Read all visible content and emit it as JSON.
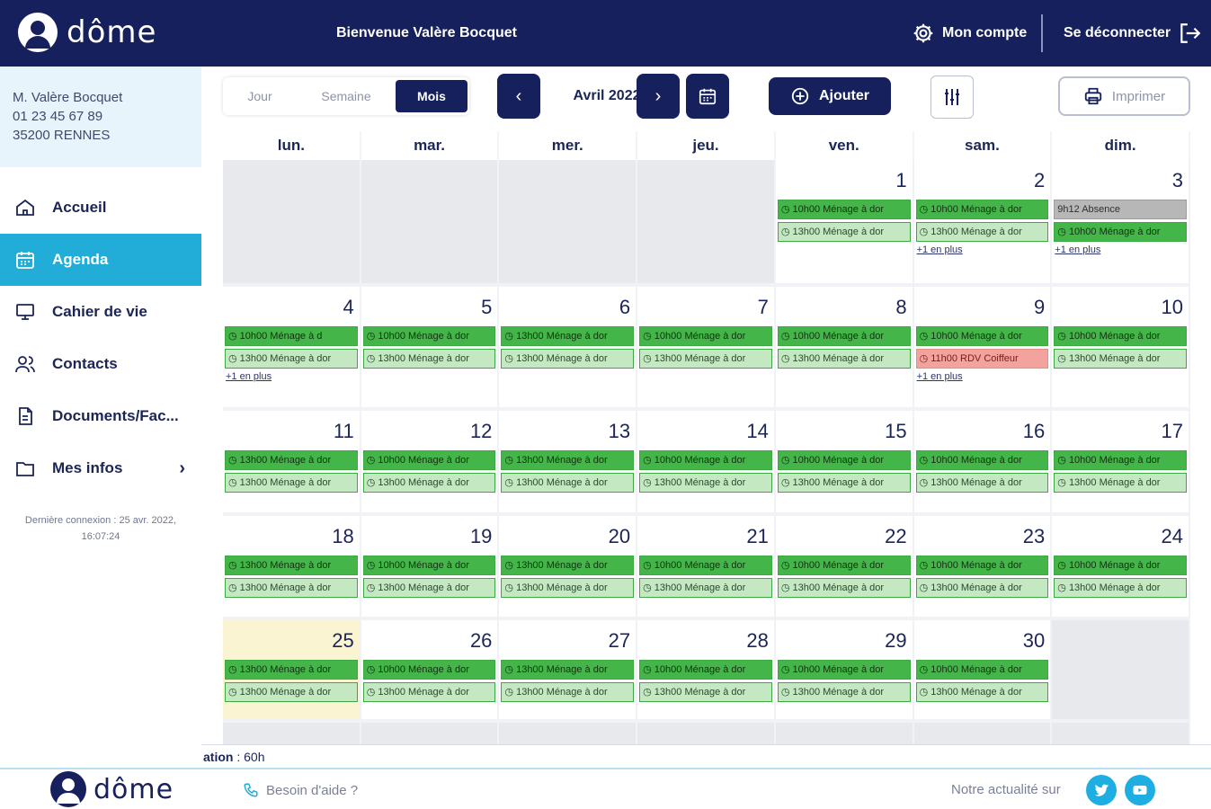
{
  "header": {
    "logo_text": "dôme",
    "welcome": "Bienvenue Valère Bocquet",
    "account_label": "Mon compte",
    "logout_label": "Se déconnecter"
  },
  "user": {
    "name": "M. Valère Bocquet",
    "phone": "01 23 45 67 89",
    "city": "35200 RENNES"
  },
  "sidebar": {
    "items": [
      {
        "label": "Accueil",
        "icon": "home-icon"
      },
      {
        "label": "Agenda",
        "icon": "calendar-icon",
        "active": true
      },
      {
        "label": "Cahier de vie",
        "icon": "monitor-icon"
      },
      {
        "label": "Contacts",
        "icon": "contacts-icon"
      },
      {
        "label": "Documents/Fac...",
        "icon": "document-icon"
      },
      {
        "label": "Mes infos",
        "icon": "folder-icon"
      }
    ],
    "last_login": "Dernière connexion : 25 avr. 2022, 16:07:24"
  },
  "toolbar": {
    "views": [
      "Jour",
      "Semaine",
      "Mois"
    ],
    "active_view": "Mois",
    "month_label": "Avril 2022",
    "add_label": "Ajouter",
    "print_label": "Imprimer"
  },
  "calendar": {
    "weekdays": [
      "lun.",
      "mar.",
      "mer.",
      "jeu.",
      "ven.",
      "sam.",
      "dim."
    ],
    "weeks": [
      [
        {
          "day": "",
          "events": []
        },
        {
          "day": "",
          "events": []
        },
        {
          "day": "",
          "events": []
        },
        {
          "day": "",
          "events": []
        },
        {
          "day": "1",
          "events": [
            {
              "text": "10h00 Ménage à dor",
              "kind": "dark"
            },
            {
              "text": "13h00 Ménage à dor",
              "kind": "light"
            }
          ]
        },
        {
          "day": "2",
          "events": [
            {
              "text": "10h00 Ménage à dor",
              "kind": "dark"
            },
            {
              "text": "13h00 Ménage à dor",
              "kind": "light"
            }
          ],
          "more": "+1 en plus"
        },
        {
          "day": "3",
          "events": [
            {
              "text": "9h12 Absence",
              "kind": "gray"
            },
            {
              "text": "10h00 Ménage à dor",
              "kind": "dark"
            }
          ],
          "more": "+1 en plus"
        }
      ],
      [
        {
          "day": "4",
          "events": [
            {
              "text": "10h00 Ménage à d",
              "kind": "dark"
            },
            {
              "text": "13h00 Ménage à dor",
              "kind": "light"
            }
          ],
          "more": "+1 en plus"
        },
        {
          "day": "5",
          "events": [
            {
              "text": "10h00 Ménage à dor",
              "kind": "dark"
            },
            {
              "text": "13h00 Ménage à dor",
              "kind": "light"
            }
          ]
        },
        {
          "day": "6",
          "events": [
            {
              "text": "13h00 Ménage à dor",
              "kind": "dark"
            },
            {
              "text": "13h00 Ménage à dor",
              "kind": "light"
            }
          ]
        },
        {
          "day": "7",
          "events": [
            {
              "text": "10h00 Ménage à dor",
              "kind": "dark"
            },
            {
              "text": "13h00 Ménage à dor",
              "kind": "light"
            }
          ]
        },
        {
          "day": "8",
          "events": [
            {
              "text": "10h00 Ménage à dor",
              "kind": "dark"
            },
            {
              "text": "13h00 Ménage à dor",
              "kind": "light"
            }
          ]
        },
        {
          "day": "9",
          "events": [
            {
              "text": "10h00 Ménage à dor",
              "kind": "dark"
            },
            {
              "text": "11h00 RDV Coiffeur",
              "kind": "red"
            }
          ],
          "more": "+1 en plus"
        },
        {
          "day": "10",
          "events": [
            {
              "text": "10h00 Ménage à dor",
              "kind": "dark"
            },
            {
              "text": "13h00 Ménage à dor",
              "kind": "light"
            }
          ]
        }
      ],
      [
        {
          "day": "11",
          "events": [
            {
              "text": "13h00 Ménage à dor",
              "kind": "dark"
            },
            {
              "text": "13h00 Ménage à dor",
              "kind": "light"
            }
          ]
        },
        {
          "day": "12",
          "events": [
            {
              "text": "10h00 Ménage à dor",
              "kind": "dark"
            },
            {
              "text": "13h00 Ménage à dor",
              "kind": "light"
            }
          ]
        },
        {
          "day": "13",
          "events": [
            {
              "text": "13h00 Ménage à dor",
              "kind": "dark"
            },
            {
              "text": "13h00 Ménage à dor",
              "kind": "light"
            }
          ]
        },
        {
          "day": "14",
          "events": [
            {
              "text": "10h00 Ménage à dor",
              "kind": "dark"
            },
            {
              "text": "13h00 Ménage à dor",
              "kind": "light"
            }
          ]
        },
        {
          "day": "15",
          "events": [
            {
              "text": "10h00 Ménage à dor",
              "kind": "dark"
            },
            {
              "text": "13h00 Ménage à dor",
              "kind": "light"
            }
          ]
        },
        {
          "day": "16",
          "events": [
            {
              "text": "10h00 Ménage à dor",
              "kind": "dark"
            },
            {
              "text": "13h00 Ménage à dor",
              "kind": "light"
            }
          ]
        },
        {
          "day": "17",
          "events": [
            {
              "text": "10h00 Ménage à dor",
              "kind": "dark"
            },
            {
              "text": "13h00 Ménage à dor",
              "kind": "light"
            }
          ]
        }
      ],
      [
        {
          "day": "18",
          "events": [
            {
              "text": "13h00 Ménage à dor",
              "kind": "dark"
            },
            {
              "text": "13h00 Ménage à dor",
              "kind": "light"
            }
          ]
        },
        {
          "day": "19",
          "events": [
            {
              "text": "10h00 Ménage à dor",
              "kind": "dark"
            },
            {
              "text": "13h00 Ménage à dor",
              "kind": "light"
            }
          ]
        },
        {
          "day": "20",
          "events": [
            {
              "text": "13h00 Ménage à dor",
              "kind": "dark"
            },
            {
              "text": "13h00 Ménage à dor",
              "kind": "light"
            }
          ]
        },
        {
          "day": "21",
          "events": [
            {
              "text": "10h00 Ménage à dor",
              "kind": "dark"
            },
            {
              "text": "13h00 Ménage à dor",
              "kind": "light"
            }
          ]
        },
        {
          "day": "22",
          "events": [
            {
              "text": "10h00 Ménage à dor",
              "kind": "dark"
            },
            {
              "text": "13h00 Ménage à dor",
              "kind": "light"
            }
          ]
        },
        {
          "day": "23",
          "events": [
            {
              "text": "10h00 Ménage à dor",
              "kind": "dark"
            },
            {
              "text": "13h00 Ménage à dor",
              "kind": "light"
            }
          ]
        },
        {
          "day": "24",
          "events": [
            {
              "text": "10h00 Ménage à dor",
              "kind": "dark"
            },
            {
              "text": "13h00 Ménage à dor",
              "kind": "light"
            }
          ]
        }
      ],
      [
        {
          "day": "25",
          "today": true,
          "events": [
            {
              "text": "13h00 Ménage à dor",
              "kind": "dark"
            },
            {
              "text": "13h00 Ménage à dor",
              "kind": "light"
            }
          ]
        },
        {
          "day": "26",
          "events": [
            {
              "text": "10h00 Ménage à dor",
              "kind": "dark"
            },
            {
              "text": "13h00 Ménage à dor",
              "kind": "light"
            }
          ]
        },
        {
          "day": "27",
          "events": [
            {
              "text": "13h00 Ménage à dor",
              "kind": "dark"
            },
            {
              "text": "13h00 Ménage à dor",
              "kind": "light"
            }
          ]
        },
        {
          "day": "28",
          "events": [
            {
              "text": "10h00 Ménage à dor",
              "kind": "dark"
            },
            {
              "text": "13h00 Ménage à dor",
              "kind": "light"
            }
          ]
        },
        {
          "day": "29",
          "events": [
            {
              "text": "10h00 Ménage à dor",
              "kind": "dark"
            },
            {
              "text": "13h00 Ménage à dor",
              "kind": "light"
            }
          ]
        },
        {
          "day": "30",
          "events": [
            {
              "text": "10h00 Ménage à dor",
              "kind": "dark"
            },
            {
              "text": "13h00 Ménage à dor",
              "kind": "light"
            }
          ]
        },
        {
          "day": "",
          "events": []
        }
      ]
    ]
  },
  "total": {
    "label": "ation",
    "value": " : 60h"
  },
  "footer": {
    "logo_text": "dôme",
    "help_label": "Besoin d'aide ?",
    "news_label": "Notre actualité sur"
  },
  "colors": {
    "navy": "#16205c",
    "accent": "#22acd8",
    "event_dark": "#44b549",
    "event_light": "#c3e8c2",
    "event_gray": "#b7b7b7",
    "event_red": "#f3a39e",
    "today": "#fbf4d2"
  }
}
